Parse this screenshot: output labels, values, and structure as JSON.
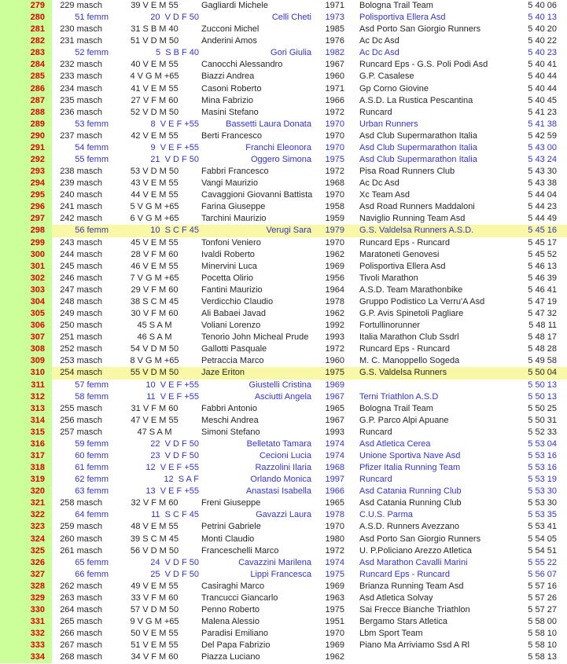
{
  "colors": {
    "position_column_bg": "#ccff99",
    "position_text": "#e10000",
    "male_row_text": "#262626",
    "female_row_text": "#3333cc",
    "highlight_row_bg": "#f8f8a6",
    "page_bg": "#ffffff"
  },
  "results": {
    "columns": [
      "position",
      "gender_rank",
      "category",
      "athlete",
      "year",
      "team",
      "time"
    ],
    "rows": [
      {
        "pos": "279",
        "catpos": "229 masch",
        "cat": "39 V E M 55",
        "name": "Gagliardi Michele",
        "year": "1971",
        "team": "Bologna Trail Team",
        "time": "5 40 06",
        "gender": "m",
        "highlight": false
      },
      {
        "pos": "280",
        "catpos": "51 femm",
        "cat": "20  V D F 50",
        "name": "Celli Cheti",
        "year": "1973",
        "team": "Polisportiva Ellera Asd",
        "time": "5 40 13",
        "gender": "f",
        "highlight": false
      },
      {
        "pos": "281",
        "catpos": "230 masch",
        "cat": "31 S B M 40",
        "name": "Zucconi Michel",
        "year": "1985",
        "team": "Asd Porto San Giorgio Runners",
        "time": "5 40 20",
        "gender": "m",
        "highlight": false
      },
      {
        "pos": "282",
        "catpos": "231 masch",
        "cat": "51 V D M 50",
        "name": "Anderini Amos",
        "year": "1976",
        "team": "Ac Dc Asd",
        "time": "5 40 22",
        "gender": "m",
        "highlight": false
      },
      {
        "pos": "283",
        "catpos": "52 femm",
        "cat": "5  S B F 40",
        "name": "Gori Giulia",
        "year": "1982",
        "team": "Ac Dc Asd",
        "time": "5 40 23",
        "gender": "f",
        "highlight": false
      },
      {
        "pos": "284",
        "catpos": "232 masch",
        "cat": "40 V E M 55",
        "name": "Canocchi Alessandro",
        "year": "1967",
        "team": "Runcard Eps - G.S. Poli Podi Asd",
        "time": "5 40 41",
        "gender": "m",
        "highlight": false
      },
      {
        "pos": "285",
        "catpos": "233 masch",
        "cat": "4 V G M +65",
        "name": "Biazzi Andrea",
        "year": "1960",
        "team": "G.P. Casalese",
        "time": "5 40 44",
        "gender": "m",
        "highlight": false
      },
      {
        "pos": "286",
        "catpos": "234 masch",
        "cat": "41 V E M 55",
        "name": "Casoni Roberto",
        "year": "1971",
        "team": "Gp Corno Giovine",
        "time": "5 40 44",
        "gender": "m",
        "highlight": false
      },
      {
        "pos": "287",
        "catpos": "235 masch",
        "cat": "27 V F M 60",
        "name": "Mina Fabrizio",
        "year": "1966",
        "team": "A.S.D. La Rustica Pescantina",
        "time": "5 40 45",
        "gender": "m",
        "highlight": false
      },
      {
        "pos": "288",
        "catpos": "236 masch",
        "cat": "52 V D M 50",
        "name": "Masini Stefano",
        "year": "1972",
        "team": "Runcard",
        "time": "5 41 23",
        "gender": "m",
        "highlight": false
      },
      {
        "pos": "289",
        "catpos": "53 femm",
        "cat": "8  V E F +55",
        "name": "Bassetti Laura Donata",
        "year": "1970",
        "team": "Urban Runners",
        "time": "5 41 38",
        "gender": "f",
        "highlight": false
      },
      {
        "pos": "290",
        "catpos": "237 masch",
        "cat": "42 V E M 55",
        "name": "Berti Francesco",
        "year": "1970",
        "team": "Asd Club Supermarathon Italia",
        "time": "5 42 59",
        "gender": "m",
        "highlight": false
      },
      {
        "pos": "291",
        "catpos": "54 femm",
        "cat": "9  V E F +55",
        "name": "Franchi Eleonora",
        "year": "1970",
        "team": "Asd Club Supermarathon Italia",
        "time": "5 43 00",
        "gender": "f",
        "highlight": false
      },
      {
        "pos": "292",
        "catpos": "55 femm",
        "cat": "21  V D F 50",
        "name": "Oggero Simona",
        "year": "1975",
        "team": "Asd Club Supermarathon Italia",
        "time": "5 43 24",
        "gender": "f",
        "highlight": false
      },
      {
        "pos": "293",
        "catpos": "238 masch",
        "cat": "53 V D M 50",
        "name": "Fabbri Francesco",
        "year": "1972",
        "team": "Pisa Road Runners Club",
        "time": "5 43 30",
        "gender": "m",
        "highlight": false
      },
      {
        "pos": "294",
        "catpos": "239 masch",
        "cat": "43 V E M 55",
        "name": "Vangi Maurizio",
        "year": "1968",
        "team": "Ac Dc Asd",
        "time": "5 43 38",
        "gender": "m",
        "highlight": false
      },
      {
        "pos": "295",
        "catpos": "240 masch",
        "cat": "44 V E M 55",
        "name": "Cavaggioni Giovanni Battista",
        "year": "1970",
        "team": "Xc Team Asd",
        "time": "5 44 04",
        "gender": "m",
        "highlight": false
      },
      {
        "pos": "296",
        "catpos": "241 masch",
        "cat": "5 V G M +65",
        "name": "Farina Giuseppe",
        "year": "1958",
        "team": "Asd Road Runners Maddaloni",
        "time": "5 44 23",
        "gender": "m",
        "highlight": false
      },
      {
        "pos": "297",
        "catpos": "242 masch",
        "cat": "6 V G M +65",
        "name": "Tarchini Maurizio",
        "year": "1959",
        "team": "Naviglio Running Team Asd",
        "time": "5 44 49",
        "gender": "m",
        "highlight": false
      },
      {
        "pos": "298",
        "catpos": "56 femm",
        "cat": "10  S C F 45",
        "name": "Verugi Sara",
        "year": "1979",
        "team": "G.S. Valdelsa Runners A.S.D.",
        "time": "5 45 16",
        "gender": "f",
        "highlight": true
      },
      {
        "pos": "299",
        "catpos": "243 masch",
        "cat": "45 V E M 55",
        "name": "Tonfoni Veniero",
        "year": "1970",
        "team": "Runcard Eps - Runcard",
        "time": "5 45 17",
        "gender": "m",
        "highlight": false
      },
      {
        "pos": "300",
        "catpos": "244 masch",
        "cat": "28 V F M 60",
        "name": "Ivaldi Roberto",
        "year": "1962",
        "team": "Maratoneti Genovesi",
        "time": "5 45 52",
        "gender": "m",
        "highlight": false
      },
      {
        "pos": "301",
        "catpos": "245 masch",
        "cat": "46 V E M 55",
        "name": "Minervini Luca",
        "year": "1969",
        "team": "Polisportiva Ellera Asd",
        "time": "5 46 13",
        "gender": "m",
        "highlight": false
      },
      {
        "pos": "302",
        "catpos": "246 masch",
        "cat": "7 V G M +65",
        "name": "Pocetta Olirio",
        "year": "1956",
        "team": "Tivoli Marathon",
        "time": "5 46 39",
        "gender": "m",
        "highlight": false
      },
      {
        "pos": "303",
        "catpos": "247 masch",
        "cat": "29 V F M 60",
        "name": "Fantini Maurizio",
        "year": "1964",
        "team": "A.S.D. Team Marathonbike",
        "time": "5 46 41",
        "gender": "m",
        "highlight": false
      },
      {
        "pos": "304",
        "catpos": "248 masch",
        "cat": "38 S C M 45",
        "name": "Verdicchio Claudio",
        "year": "1978",
        "team": "Gruppo Podistico La Verru'A Asd",
        "time": "5 47 19",
        "gender": "m",
        "highlight": false
      },
      {
        "pos": "305",
        "catpos": "249 masch",
        "cat": "30 V F M 60",
        "name": "Ali Babaei Javad",
        "year": "1962",
        "team": "G.P. Avis Spinetoli Pagliare",
        "time": "5 47 32",
        "gender": "m",
        "highlight": false
      },
      {
        "pos": "306",
        "catpos": "250 masch",
        "cat": "45 S A M",
        "name": "Voliani Lorenzo",
        "year": "1992",
        "team": "Fortullinorunner",
        "time": "5 48 11",
        "gender": "m",
        "highlight": false
      },
      {
        "pos": "307",
        "catpos": "251 masch",
        "cat": "46 S A M",
        "name": "Tenorio John Micheal Prude",
        "year": "1993",
        "team": "Italia Marathon Club Ssdrl",
        "time": "5 48 17",
        "gender": "m",
        "highlight": false
      },
      {
        "pos": "308",
        "catpos": "252 masch",
        "cat": "54 V D M 50",
        "name": "Gallotti Pasquale",
        "year": "1972",
        "team": "Runcard Eps - Runcard",
        "time": "5 48 28",
        "gender": "m",
        "highlight": false
      },
      {
        "pos": "309",
        "catpos": "253 masch",
        "cat": "8 V G M +65",
        "name": "Petraccia Marco",
        "year": "1960",
        "team": "M. C. Manoppello Sogeda",
        "time": "5 49 58",
        "gender": "m",
        "highlight": false
      },
      {
        "pos": "310",
        "catpos": "254 masch",
        "cat": "55 V D M 50",
        "name": "Jaze Eriton",
        "year": "1975",
        "team": "G.S. Valdelsa Runners",
        "time": "5 50 04",
        "gender": "m",
        "highlight": true
      },
      {
        "pos": "311",
        "catpos": "57 femm",
        "cat": "10  V E F +55",
        "name": "Giustelli Cristina",
        "year": "1969",
        "team": "",
        "time": "5 50 13",
        "gender": "f",
        "highlight": false
      },
      {
        "pos": "312",
        "catpos": "58 femm",
        "cat": "11  V E F +55",
        "name": "Asciutti Angela",
        "year": "1967",
        "team": "Terni Triathlon A.S.D",
        "time": "5 50 13",
        "gender": "f",
        "highlight": false
      },
      {
        "pos": "313",
        "catpos": "255 masch",
        "cat": "31 V F M 60",
        "name": "Fabbri Antonio",
        "year": "1965",
        "team": "Bologna Trail Team",
        "time": "5 50 25",
        "gender": "m",
        "highlight": false
      },
      {
        "pos": "314",
        "catpos": "256 masch",
        "cat": "47 V E M 55",
        "name": "Meschi Andrea",
        "year": "1967",
        "team": "G.P. Parco Alpi Apuane",
        "time": "5 50 31",
        "gender": "m",
        "highlight": false
      },
      {
        "pos": "315",
        "catpos": "257 masch",
        "cat": "47 S A M",
        "name": "Simoni Stefano",
        "year": "1993",
        "team": "Runcard",
        "time": "5 52 33",
        "gender": "m",
        "highlight": false
      },
      {
        "pos": "316",
        "catpos": "59 femm",
        "cat": "22  V D F 50",
        "name": "Belletato Tamara",
        "year": "1974",
        "team": "Asd Atletica Cerea",
        "time": "5 53 04",
        "gender": "f",
        "highlight": false
      },
      {
        "pos": "317",
        "catpos": "60 femm",
        "cat": "23  V D F 50",
        "name": "Cecioni Lucia",
        "year": "1974",
        "team": "Unione Sportiva Nave Asd",
        "time": "5 53 16",
        "gender": "f",
        "highlight": false
      },
      {
        "pos": "318",
        "catpos": "61 femm",
        "cat": "12  V E F +55",
        "name": "Razzolini Ilaria",
        "year": "1968",
        "team": "Pfizer Italia Running Team",
        "time": "5 53 16",
        "gender": "f",
        "highlight": false
      },
      {
        "pos": "319",
        "catpos": "62 femm",
        "cat": "12  S A F",
        "name": "Orlando Monica",
        "year": "1997",
        "team": "Runcard",
        "time": "5 53 19",
        "gender": "f",
        "highlight": false
      },
      {
        "pos": "320",
        "catpos": "63 femm",
        "cat": "13  V E F +55",
        "name": "Anastasi Isabella",
        "year": "1966",
        "team": "Asd Catania Running Club",
        "time": "5 53 30",
        "gender": "f",
        "highlight": false
      },
      {
        "pos": "321",
        "catpos": "258 masch",
        "cat": "32 V F M 60",
        "name": "Freni Giuseppe",
        "year": "1965",
        "team": "Asd Catania Running Club",
        "time": "5 53 30",
        "gender": "m",
        "highlight": false
      },
      {
        "pos": "322",
        "catpos": "64 femm",
        "cat": "11  S C F 45",
        "name": "Gavazzi Laura",
        "year": "1978",
        "team": "C.U.S. Parma",
        "time": "5 53 35",
        "gender": "f",
        "highlight": false
      },
      {
        "pos": "323",
        "catpos": "259 masch",
        "cat": "48 V E M 55",
        "name": "Petrini Gabriele",
        "year": "1970",
        "team": "A.S.D. Runners Avezzano",
        "time": "5 53 41",
        "gender": "m",
        "highlight": false
      },
      {
        "pos": "324",
        "catpos": "260 masch",
        "cat": "39 S C M 45",
        "name": "Monti Claudio",
        "year": "1980",
        "team": "Asd Porto San Giorgio Runners",
        "time": "5 54 05",
        "gender": "m",
        "highlight": false
      },
      {
        "pos": "325",
        "catpos": "261 masch",
        "cat": "56 V D M 50",
        "name": "Franceschelli Marco",
        "year": "1972",
        "team": "U. P.Policiano Arezzo Atletica",
        "time": "5 54 51",
        "gender": "m",
        "highlight": false
      },
      {
        "pos": "326",
        "catpos": "65 femm",
        "cat": "24  V D F 50",
        "name": "Cavazzini Marilena",
        "year": "1974",
        "team": "Asd Marathon Cavalli Marini",
        "time": "5 55 22",
        "gender": "f",
        "highlight": false
      },
      {
        "pos": "327",
        "catpos": "66 femm",
        "cat": "25  V D F 50",
        "name": "Lippi Francesca",
        "year": "1975",
        "team": "Runcard Eps - Runcard",
        "time": "5 56 07",
        "gender": "f",
        "highlight": false
      },
      {
        "pos": "328",
        "catpos": "262 masch",
        "cat": "49 V E M 55",
        "name": "Casiraghi Marco",
        "year": "1969",
        "team": "Brianza Running Team Asd",
        "time": "5 57 16",
        "gender": "m",
        "highlight": false
      },
      {
        "pos": "329",
        "catpos": "263 masch",
        "cat": "33 V F M 60",
        "name": "Trancucci Giancarlo",
        "year": "1963",
        "team": "Asd Atletica Solvay",
        "time": "5 57 26",
        "gender": "m",
        "highlight": false
      },
      {
        "pos": "330",
        "catpos": "264 masch",
        "cat": "57 V D M 50",
        "name": "Penno Roberto",
        "year": "1975",
        "team": "Sai Frecce Bianche Triathlon",
        "time": "5 57 27",
        "gender": "m",
        "highlight": false
      },
      {
        "pos": "331",
        "catpos": "265 masch",
        "cat": "9 V G M +65",
        "name": "Malena Alessio",
        "year": "1951",
        "team": "Bergamo Stars Atletica",
        "time": "5 58 00",
        "gender": "m",
        "highlight": false
      },
      {
        "pos": "332",
        "catpos": "266 masch",
        "cat": "50 V E M 55",
        "name": "Paradisi Emiliano",
        "year": "1970",
        "team": "Lbm Sport Team",
        "time": "5 58 10",
        "gender": "m",
        "highlight": false
      },
      {
        "pos": "333",
        "catpos": "267 masch",
        "cat": "51 V E M 55",
        "name": "Del Papa Fabrizio",
        "year": "1969",
        "team": "Piano Ma Arriviamo Ssd A Rl",
        "time": "5 58 10",
        "gender": "m",
        "highlight": false
      },
      {
        "pos": "334",
        "catpos": "268 masch",
        "cat": "34 V F M 60",
        "name": "Piazza Luciano",
        "year": "1962",
        "team": "",
        "time": "5 58 13",
        "gender": "m",
        "highlight": false
      }
    ]
  }
}
